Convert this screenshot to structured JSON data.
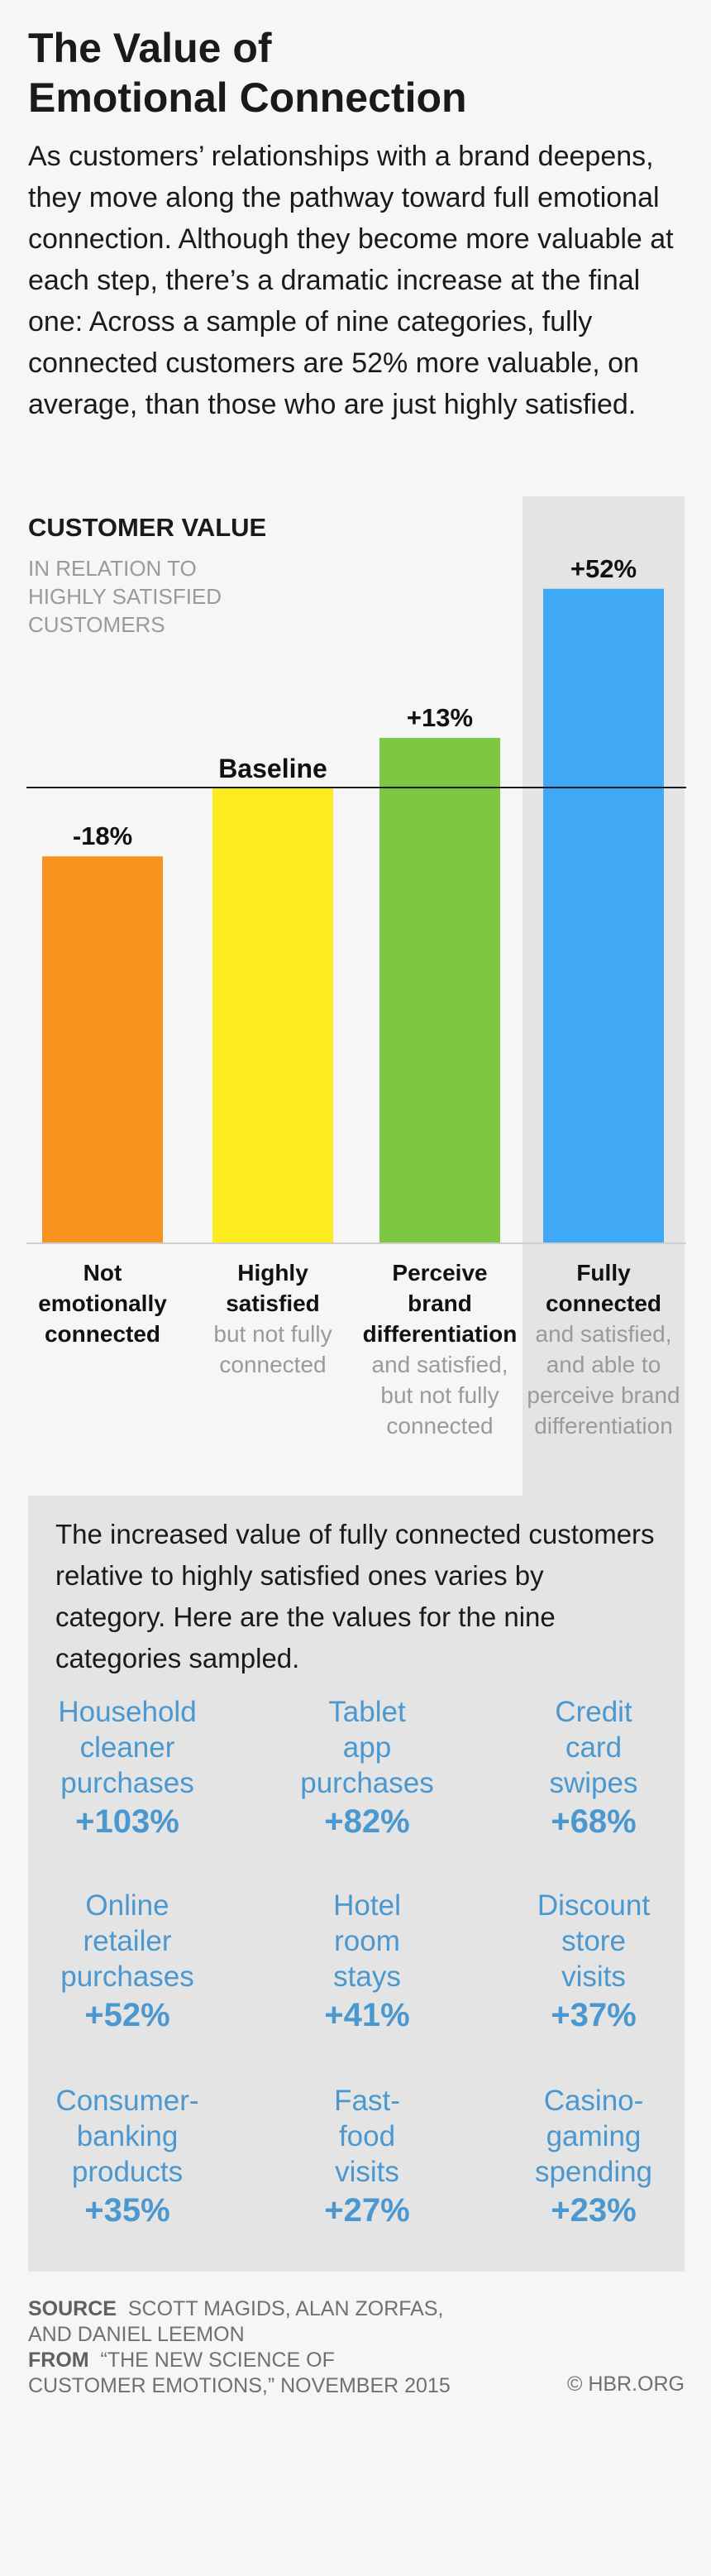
{
  "header": {
    "title": "The Value of\nEmotional Connection",
    "intro": "As customers’ relationships with a brand deepens, they move along the pathway toward full emotional connection. Although they become more valuable at each step, there’s a dramatic increase at the final one: Across a sample of nine categories, fully connected customers are 52% more valuable, on average, than those who are just highly satisfied."
  },
  "chart_data": {
    "type": "bar",
    "title": "CUSTOMER VALUE",
    "subtitle": "IN RELATION TO HIGHLY SATISFIED CUSTOMERS",
    "baseline_label": "Baseline",
    "categories": [
      {
        "name": "Not emotionally connected",
        "desc": "",
        "value": -18,
        "label": "-18%",
        "color": "#f7931e"
      },
      {
        "name": "Highly satisfied",
        "desc": "but not fully connected",
        "value": 0,
        "label": "",
        "color": "#fcec1f"
      },
      {
        "name": "Perceive brand differentiation",
        "desc": "and satisfied, but not fully connected",
        "value": 13,
        "label": "+13%",
        "color": "#7dc843"
      },
      {
        "name": "Fully connected",
        "desc": "and satisfied, and able to perceive brand differentiation",
        "value": 52,
        "label": "+52%",
        "color": "#3fa9f5"
      }
    ],
    "highlighted_category": "Fully connected",
    "colors": {
      "highlight_bg": "#e4e4e4",
      "baseline": "#1a1a1a"
    }
  },
  "breakdown": {
    "intro": "The increased value of fully connected customers relative to highly satisfied ones varies by category. Here are the values for the nine categories sampled.",
    "color": "#4a98cf",
    "items": [
      {
        "name": "Household\ncleaner\npurchases",
        "value": "+103%"
      },
      {
        "name": "Tablet\napp\npurchases",
        "value": "+82%"
      },
      {
        "name": "Credit\ncard\nswipes",
        "value": "+68%"
      },
      {
        "name": "Online\nretailer\npurchases",
        "value": "+52%"
      },
      {
        "name": "Hotel\nroom\nstays",
        "value": "+41%"
      },
      {
        "name": "Discount\nstore\nvisits",
        "value": "+37%"
      },
      {
        "name": "Consumer-\nbanking\nproducts",
        "value": "+35%"
      },
      {
        "name": "Fast-\nfood\nvisits",
        "value": "+27%"
      },
      {
        "name": "Casino-\ngaming\nspending",
        "value": "+23%"
      }
    ]
  },
  "footer": {
    "source_label": "SOURCE",
    "source_text": "SCOTT MAGIDS, ALAN ZORFAS,\nAND DANIEL LEEMON",
    "from_label": "FROM",
    "from_text": "“THE NEW SCIENCE OF\nCUSTOMER EMOTIONS,” NOVEMBER 2015",
    "copyright": "© HBR.ORG"
  }
}
